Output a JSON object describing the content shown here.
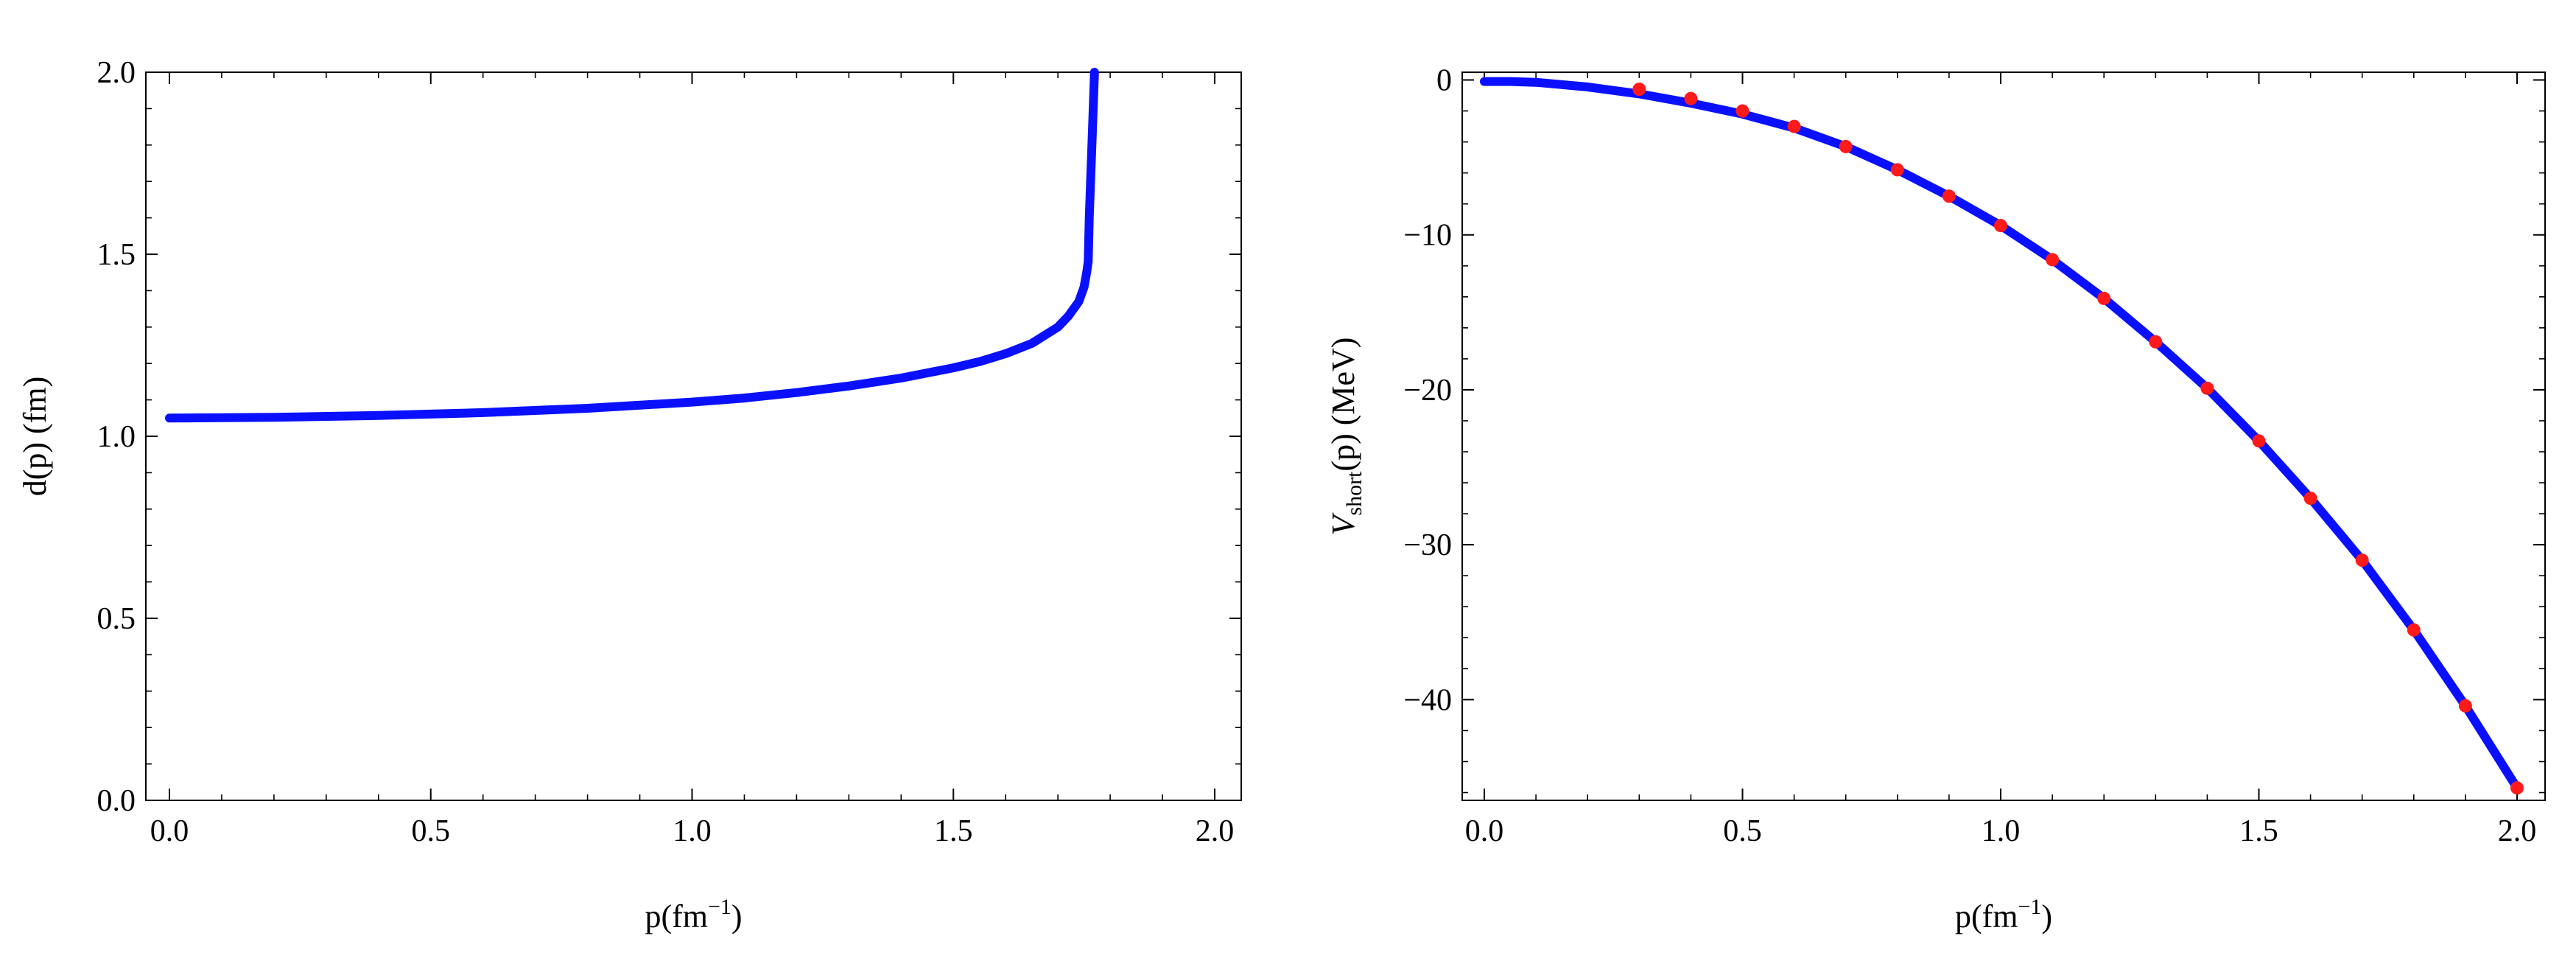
{
  "chart_data": [
    {
      "type": "line",
      "xlabel": "p(fm",
      "xlabel_sup": "−1",
      "xlabel_close": ")",
      "ylabel": "d(p) (fm)",
      "xlim": [
        0.0,
        2.0
      ],
      "ylim": [
        0.0,
        2.0
      ],
      "xticks": [
        "0.0",
        "0.5",
        "1.0",
        "1.5",
        "2.0"
      ],
      "yticks": [
        "0.0",
        "0.5",
        "1.0",
        "1.5",
        "2.0"
      ],
      "grid": false,
      "series": [
        {
          "color": "#0a10ff",
          "x": [
            0.0,
            0.2,
            0.4,
            0.6,
            0.8,
            1.0,
            1.1,
            1.2,
            1.3,
            1.4,
            1.5,
            1.55,
            1.6,
            1.65,
            1.7,
            1.72,
            1.74,
            1.75,
            1.755,
            1.758,
            1.76,
            1.765,
            1.77
          ],
          "y": [
            1.05,
            1.052,
            1.057,
            1.065,
            1.077,
            1.094,
            1.105,
            1.12,
            1.138,
            1.16,
            1.188,
            1.205,
            1.227,
            1.255,
            1.3,
            1.33,
            1.37,
            1.41,
            1.45,
            1.48,
            1.6,
            1.8,
            2.0
          ]
        }
      ]
    },
    {
      "type": "line",
      "xlabel": "p(fm",
      "xlabel_sup": "−1",
      "xlabel_close": ")",
      "ylabel_main": "V",
      "ylabel_sub": "short",
      "ylabel_rest": "(p) (MeV)",
      "xlim": [
        0.0,
        2.0
      ],
      "ylim": [
        -46.5,
        0.5
      ],
      "xticks": [
        "0.0",
        "0.5",
        "1.0",
        "1.5",
        "2.0"
      ],
      "yticks": [
        "0",
        "−10",
        "−20",
        "−30",
        "−40"
      ],
      "ytick_values": [
        0,
        -10,
        -20,
        -30,
        -40
      ],
      "grid": false,
      "curve": {
        "color": "#0a10ff",
        "x": [
          0.0,
          0.05,
          0.1,
          0.15,
          0.2,
          0.3,
          0.4,
          0.5,
          0.6,
          0.7,
          0.8,
          0.9,
          1.0,
          1.1,
          1.2,
          1.3,
          1.4,
          1.5,
          1.6,
          1.7,
          1.8,
          1.9,
          2.0
        ],
        "y": [
          -0.1,
          -0.1,
          -0.15,
          -0.3,
          -0.45,
          -0.9,
          -1.5,
          -2.2,
          -3.1,
          -4.3,
          -5.8,
          -7.5,
          -9.4,
          -11.6,
          -14.1,
          -16.9,
          -19.9,
          -23.3,
          -27.0,
          -31.0,
          -35.5,
          -40.4,
          -45.7
        ]
      },
      "points": {
        "color": "#ff1a1a",
        "x": [
          0.3,
          0.4,
          0.5,
          0.6,
          0.7,
          0.8,
          0.9,
          1.0,
          1.1,
          1.2,
          1.3,
          1.4,
          1.5,
          1.6,
          1.7,
          1.8,
          1.9,
          2.0
        ],
        "y": [
          -0.6,
          -1.2,
          -2.0,
          -3.0,
          -4.3,
          -5.8,
          -7.5,
          -9.4,
          -11.6,
          -14.1,
          -16.9,
          -19.9,
          -23.3,
          -27.0,
          -31.0,
          -35.5,
          -40.4,
          -45.7
        ]
      }
    }
  ]
}
